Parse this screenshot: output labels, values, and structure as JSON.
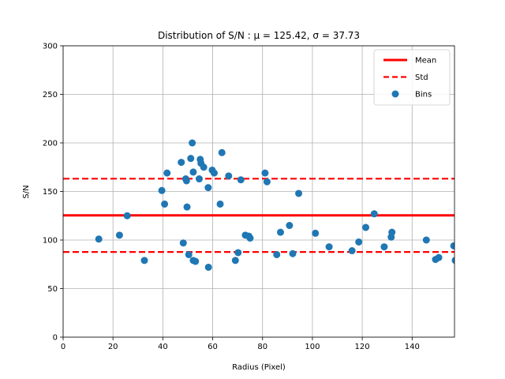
{
  "chart_data": {
    "type": "scatter",
    "title": "Distribution of S/N :  μ = 125.42,  σ = 37.73",
    "xlabel": "Radius (Pixel)",
    "ylabel": "S/N",
    "xlim": [
      0,
      157
    ],
    "ylim": [
      0,
      300
    ],
    "xticks": [
      0,
      20,
      40,
      60,
      80,
      100,
      120,
      140
    ],
    "yticks": [
      0,
      50,
      100,
      150,
      200,
      250,
      300
    ],
    "grid": true,
    "legend_position": "top-right",
    "mean": 125.42,
    "std": 37.73,
    "series": [
      {
        "name": "Mean",
        "kind": "hline",
        "y": 125.42,
        "color": "#ff0000",
        "style": "solid"
      },
      {
        "name": "Std",
        "kind": "hline-pair",
        "y": [
          87.69,
          163.15
        ],
        "color": "#ff0000",
        "style": "dashed"
      },
      {
        "name": "Bins",
        "kind": "scatter",
        "color": "#1f77b4",
        "points": [
          [
            14.3,
            101
          ],
          [
            22.6,
            105
          ],
          [
            25.7,
            125
          ],
          [
            32.6,
            79
          ],
          [
            39.6,
            151
          ],
          [
            40.7,
            137
          ],
          [
            41.7,
            169
          ],
          [
            47.4,
            180
          ],
          [
            48.2,
            97
          ],
          [
            49.2,
            163
          ],
          [
            49.5,
            161
          ],
          [
            49.7,
            134
          ],
          [
            50.4,
            85
          ],
          [
            51.2,
            184
          ],
          [
            51.8,
            200
          ],
          [
            52.2,
            170
          ],
          [
            52.2,
            79
          ],
          [
            53.1,
            78
          ],
          [
            54.6,
            163
          ],
          [
            55.0,
            183
          ],
          [
            55.3,
            179
          ],
          [
            56.4,
            175
          ],
          [
            58.2,
            154
          ],
          [
            58.3,
            72
          ],
          [
            59.8,
            172
          ],
          [
            60.6,
            169
          ],
          [
            63.0,
            137
          ],
          [
            63.7,
            190
          ],
          [
            66.4,
            166
          ],
          [
            69.1,
            79
          ],
          [
            70.2,
            87
          ],
          [
            71.3,
            162
          ],
          [
            73.1,
            105
          ],
          [
            74.5,
            104
          ],
          [
            75.0,
            102
          ],
          [
            81.0,
            169
          ],
          [
            81.8,
            160
          ],
          [
            85.7,
            85
          ],
          [
            87.2,
            108
          ],
          [
            90.8,
            115
          ],
          [
            92.1,
            86
          ],
          [
            94.5,
            148
          ],
          [
            101.2,
            107
          ],
          [
            106.7,
            93
          ],
          [
            115.9,
            89
          ],
          [
            118.6,
            98
          ],
          [
            121.4,
            113
          ],
          [
            124.8,
            127
          ],
          [
            128.8,
            93
          ],
          [
            131.6,
            103
          ],
          [
            131.9,
            108
          ],
          [
            145.7,
            100
          ],
          [
            149.4,
            80
          ],
          [
            150.7,
            82
          ],
          [
            156.7,
            94
          ],
          [
            157.3,
            79
          ]
        ]
      }
    ]
  }
}
